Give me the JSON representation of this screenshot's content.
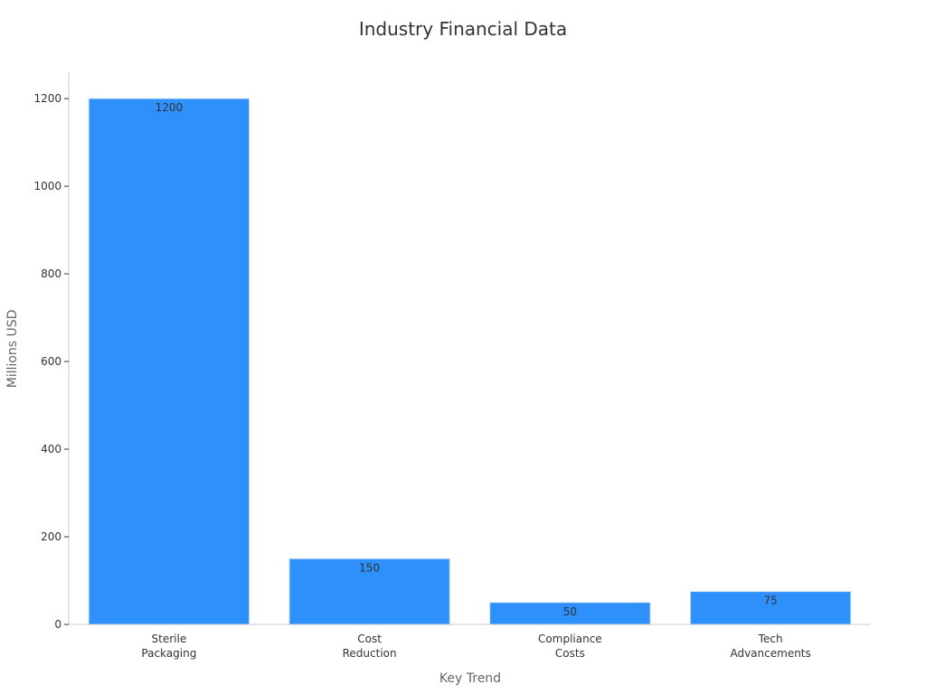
{
  "chart_data": {
    "type": "bar",
    "title": "Industry Financial Data",
    "xlabel": "Key Trend",
    "ylabel": "Millions USD",
    "categories": [
      [
        "Sterile",
        "Packaging"
      ],
      [
        "Cost",
        "Reduction"
      ],
      [
        "Compliance",
        "Costs"
      ],
      [
        "Tech",
        "Advancements"
      ]
    ],
    "values": [
      1200,
      150,
      50,
      75
    ],
    "data_labels": [
      "1200",
      "150",
      "50",
      "75"
    ],
    "ylim": [
      0,
      1260
    ],
    "yticks": [
      0,
      200,
      400,
      600,
      800,
      1000,
      1200
    ],
    "grid": false,
    "legend": "none",
    "colors": {
      "bar": "#2e90fa",
      "bar_edge": "#c9def5",
      "axis": "#cccccc",
      "text": "#333333",
      "axis_title": "#666666"
    }
  }
}
